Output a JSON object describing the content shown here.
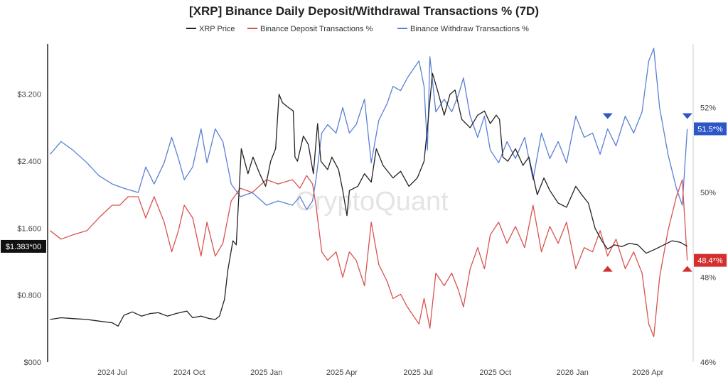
{
  "chart_data": {
    "type": "line",
    "title": "[XRP] Binance Daily Deposit/Withdrawal Transactions % (7D)",
    "watermark": "CryptoQuant",
    "x_ticks": [
      "2024 Jul",
      "2024 Oct",
      "2025 Jan",
      "2025 Apr",
      "2025 Jul",
      "2025 Oct",
      "2026 Jan",
      "2026 Apr"
    ],
    "y_left_ticks": [
      "$000",
      "$0.800",
      "$1.600",
      "$2.400",
      "$3.200"
    ],
    "y_left_values": [
      0,
      0.8,
      1.6,
      2.4,
      3.2
    ],
    "y_left_range": [
      0,
      3.8
    ],
    "y_right_ticks": [
      "46%",
      "48%",
      "50%",
      "52%"
    ],
    "y_right_values": [
      46,
      48,
      50,
      52
    ],
    "y_right_range": [
      46,
      53.5
    ],
    "x_range": [
      "2024-04-15",
      "2026-05-25"
    ],
    "series": [
      {
        "name": "XRP Price",
        "axis": "left",
        "color": "#222222",
        "last_label": "$1.383*00",
        "points": [
          [
            "2024-04-18",
            0.51
          ],
          [
            "2024-05-01",
            0.53
          ],
          [
            "2024-05-15",
            0.52
          ],
          [
            "2024-06-01",
            0.51
          ],
          [
            "2024-06-15",
            0.49
          ],
          [
            "2024-07-01",
            0.47
          ],
          [
            "2024-07-08",
            0.43
          ],
          [
            "2024-07-15",
            0.56
          ],
          [
            "2024-07-25",
            0.6
          ],
          [
            "2024-08-05",
            0.55
          ],
          [
            "2024-08-15",
            0.58
          ],
          [
            "2024-08-25",
            0.59
          ],
          [
            "2024-09-05",
            0.55
          ],
          [
            "2024-09-15",
            0.58
          ],
          [
            "2024-09-28",
            0.61
          ],
          [
            "2024-10-05",
            0.53
          ],
          [
            "2024-10-15",
            0.55
          ],
          [
            "2024-10-25",
            0.52
          ],
          [
            "2024-11-01",
            0.51
          ],
          [
            "2024-11-06",
            0.55
          ],
          [
            "2024-11-12",
            0.75
          ],
          [
            "2024-11-16",
            1.1
          ],
          [
            "2024-11-22",
            1.45
          ],
          [
            "2024-11-26",
            1.4
          ],
          [
            "2024-12-02",
            2.55
          ],
          [
            "2024-12-06",
            2.4
          ],
          [
            "2024-12-10",
            2.25
          ],
          [
            "2024-12-16",
            2.45
          ],
          [
            "2024-12-24",
            2.25
          ],
          [
            "2024-12-31",
            2.1
          ],
          [
            "2025-01-06",
            2.4
          ],
          [
            "2025-01-12",
            2.55
          ],
          [
            "2025-01-16",
            3.2
          ],
          [
            "2025-01-20",
            3.1
          ],
          [
            "2025-01-26",
            3.05
          ],
          [
            "2025-02-02",
            3.0
          ],
          [
            "2025-02-04",
            2.45
          ],
          [
            "2025-02-07",
            2.4
          ],
          [
            "2025-02-14",
            2.7
          ],
          [
            "2025-02-20",
            2.6
          ],
          [
            "2025-02-26",
            2.25
          ],
          [
            "2025-03-03",
            2.85
          ],
          [
            "2025-03-07",
            2.4
          ],
          [
            "2025-03-15",
            2.3
          ],
          [
            "2025-03-20",
            2.45
          ],
          [
            "2025-03-28",
            2.3
          ],
          [
            "2025-04-02",
            2.05
          ],
          [
            "2025-04-07",
            1.75
          ],
          [
            "2025-04-10",
            2.05
          ],
          [
            "2025-04-20",
            2.1
          ],
          [
            "2025-04-28",
            2.25
          ],
          [
            "2025-05-06",
            2.15
          ],
          [
            "2025-05-12",
            2.55
          ],
          [
            "2025-05-20",
            2.35
          ],
          [
            "2025-06-01",
            2.2
          ],
          [
            "2025-06-10",
            2.28
          ],
          [
            "2025-06-20",
            2.1
          ],
          [
            "2025-06-30",
            2.2
          ],
          [
            "2025-07-08",
            2.4
          ],
          [
            "2025-07-12",
            2.8
          ],
          [
            "2025-07-18",
            3.45
          ],
          [
            "2025-07-24",
            3.25
          ],
          [
            "2025-08-01",
            2.95
          ],
          [
            "2025-08-08",
            3.2
          ],
          [
            "2025-08-14",
            3.25
          ],
          [
            "2025-08-22",
            2.9
          ],
          [
            "2025-09-01",
            2.8
          ],
          [
            "2025-09-10",
            2.95
          ],
          [
            "2025-09-18",
            3.0
          ],
          [
            "2025-09-25",
            2.85
          ],
          [
            "2025-10-02",
            2.95
          ],
          [
            "2025-10-06",
            2.9
          ],
          [
            "2025-10-10",
            2.45
          ],
          [
            "2025-10-16",
            2.4
          ],
          [
            "2025-10-25",
            2.55
          ],
          [
            "2025-11-03",
            2.35
          ],
          [
            "2025-11-10",
            2.45
          ],
          [
            "2025-11-20",
            2.0
          ],
          [
            "2025-11-28",
            2.2
          ],
          [
            "2025-12-05",
            2.05
          ],
          [
            "2025-12-15",
            1.9
          ],
          [
            "2025-12-25",
            1.85
          ],
          [
            "2026-01-05",
            2.1
          ],
          [
            "2026-01-12",
            2.0
          ],
          [
            "2026-01-20",
            1.9
          ],
          [
            "2026-01-28",
            1.6
          ],
          [
            "2026-02-05",
            1.45
          ],
          [
            "2026-02-12",
            1.35
          ],
          [
            "2026-02-20",
            1.4
          ],
          [
            "2026-03-01",
            1.38
          ],
          [
            "2026-03-10",
            1.42
          ],
          [
            "2026-03-20",
            1.4
          ],
          [
            "2026-03-30",
            1.3
          ],
          [
            "2026-04-10",
            1.35
          ],
          [
            "2026-04-20",
            1.4
          ],
          [
            "2026-04-30",
            1.45
          ],
          [
            "2026-05-10",
            1.43
          ],
          [
            "2026-05-18",
            1.383
          ]
        ]
      },
      {
        "name": "Binance Deposit Transactions %",
        "axis": "right",
        "color": "#d9534f",
        "last_label": "48.4*%",
        "points": [
          [
            "2024-04-18",
            49.1
          ],
          [
            "2024-05-01",
            48.9
          ],
          [
            "2024-05-15",
            49.0
          ],
          [
            "2024-06-01",
            49.1
          ],
          [
            "2024-06-15",
            49.4
          ],
          [
            "2024-07-01",
            49.7
          ],
          [
            "2024-07-10",
            49.7
          ],
          [
            "2024-07-20",
            49.9
          ],
          [
            "2024-08-01",
            49.9
          ],
          [
            "2024-08-10",
            49.4
          ],
          [
            "2024-08-20",
            49.9
          ],
          [
            "2024-09-01",
            49.3
          ],
          [
            "2024-09-10",
            48.6
          ],
          [
            "2024-09-18",
            49.1
          ],
          [
            "2024-09-25",
            49.7
          ],
          [
            "2024-10-05",
            49.4
          ],
          [
            "2024-10-15",
            48.5
          ],
          [
            "2024-10-22",
            49.3
          ],
          [
            "2024-11-01",
            48.5
          ],
          [
            "2024-11-10",
            48.8
          ],
          [
            "2024-11-20",
            49.8
          ],
          [
            "2024-12-01",
            50.1
          ],
          [
            "2024-12-15",
            50.0
          ],
          [
            "2025-01-01",
            50.3
          ],
          [
            "2025-01-15",
            50.2
          ],
          [
            "2025-02-01",
            50.3
          ],
          [
            "2025-02-10",
            50.1
          ],
          [
            "2025-02-18",
            50.4
          ],
          [
            "2025-02-25",
            50.2
          ],
          [
            "2025-03-01",
            49.7
          ],
          [
            "2025-03-08",
            48.6
          ],
          [
            "2025-03-15",
            48.4
          ],
          [
            "2025-03-25",
            48.6
          ],
          [
            "2025-04-02",
            48.0
          ],
          [
            "2025-04-10",
            48.6
          ],
          [
            "2025-04-18",
            48.4
          ],
          [
            "2025-04-28",
            47.8
          ],
          [
            "2025-05-06",
            49.3
          ],
          [
            "2025-05-15",
            48.3
          ],
          [
            "2025-05-25",
            47.9
          ],
          [
            "2025-06-01",
            47.5
          ],
          [
            "2025-06-10",
            47.6
          ],
          [
            "2025-06-18",
            47.3
          ],
          [
            "2025-06-25",
            47.1
          ],
          [
            "2025-07-02",
            46.9
          ],
          [
            "2025-07-08",
            47.5
          ],
          [
            "2025-07-15",
            46.8
          ],
          [
            "2025-07-22",
            48.1
          ],
          [
            "2025-08-01",
            47.8
          ],
          [
            "2025-08-10",
            48.1
          ],
          [
            "2025-08-18",
            47.7
          ],
          [
            "2025-08-24",
            47.3
          ],
          [
            "2025-09-01",
            48.2
          ],
          [
            "2025-09-10",
            48.7
          ],
          [
            "2025-09-18",
            48.2
          ],
          [
            "2025-09-25",
            49.0
          ],
          [
            "2025-10-05",
            49.3
          ],
          [
            "2025-10-15",
            48.8
          ],
          [
            "2025-10-25",
            49.2
          ],
          [
            "2025-11-05",
            48.7
          ],
          [
            "2025-11-15",
            49.7
          ],
          [
            "2025-11-25",
            48.6
          ],
          [
            "2025-12-05",
            49.2
          ],
          [
            "2025-12-15",
            48.8
          ],
          [
            "2025-12-25",
            49.3
          ],
          [
            "2026-01-05",
            48.2
          ],
          [
            "2026-01-15",
            48.7
          ],
          [
            "2026-01-25",
            48.6
          ],
          [
            "2026-02-03",
            49.1
          ],
          [
            "2026-02-12",
            48.5
          ],
          [
            "2026-02-22",
            48.9
          ],
          [
            "2026-03-05",
            48.2
          ],
          [
            "2026-03-15",
            48.6
          ],
          [
            "2026-03-25",
            48.1
          ],
          [
            "2026-04-02",
            46.9
          ],
          [
            "2026-04-08",
            46.6
          ],
          [
            "2026-04-15",
            48.0
          ],
          [
            "2026-04-25",
            49.1
          ],
          [
            "2026-05-05",
            49.9
          ],
          [
            "2026-05-12",
            50.3
          ],
          [
            "2026-05-18",
            48.4
          ]
        ]
      },
      {
        "name": "Binance Withdraw Transactions %",
        "axis": "right",
        "color": "#5b7fd6",
        "last_label": "51.5*%",
        "points": [
          [
            "2024-04-18",
            50.9
          ],
          [
            "2024-05-01",
            51.2
          ],
          [
            "2024-05-15",
            51.0
          ],
          [
            "2024-06-01",
            50.7
          ],
          [
            "2024-06-15",
            50.4
          ],
          [
            "2024-07-01",
            50.2
          ],
          [
            "2024-07-15",
            50.1
          ],
          [
            "2024-08-01",
            50.0
          ],
          [
            "2024-08-10",
            50.6
          ],
          [
            "2024-08-20",
            50.2
          ],
          [
            "2024-09-01",
            50.7
          ],
          [
            "2024-09-10",
            51.3
          ],
          [
            "2024-09-18",
            50.8
          ],
          [
            "2024-09-25",
            50.3
          ],
          [
            "2024-10-05",
            50.6
          ],
          [
            "2024-10-15",
            51.5
          ],
          [
            "2024-10-22",
            50.7
          ],
          [
            "2024-11-01",
            51.5
          ],
          [
            "2024-11-10",
            51.2
          ],
          [
            "2024-11-20",
            50.2
          ],
          [
            "2024-12-01",
            49.9
          ],
          [
            "2024-12-15",
            50.0
          ],
          [
            "2025-01-01",
            49.7
          ],
          [
            "2025-01-15",
            49.8
          ],
          [
            "2025-02-01",
            49.7
          ],
          [
            "2025-02-10",
            49.9
          ],
          [
            "2025-02-18",
            49.6
          ],
          [
            "2025-02-25",
            49.8
          ],
          [
            "2025-03-01",
            50.3
          ],
          [
            "2025-03-08",
            51.4
          ],
          [
            "2025-03-15",
            51.6
          ],
          [
            "2025-03-25",
            51.4
          ],
          [
            "2025-04-02",
            52.0
          ],
          [
            "2025-04-10",
            51.4
          ],
          [
            "2025-04-18",
            51.6
          ],
          [
            "2025-04-28",
            52.2
          ],
          [
            "2025-05-06",
            50.7
          ],
          [
            "2025-05-15",
            51.7
          ],
          [
            "2025-05-25",
            52.1
          ],
          [
            "2025-06-01",
            52.5
          ],
          [
            "2025-06-10",
            52.4
          ],
          [
            "2025-06-18",
            52.7
          ],
          [
            "2025-06-25",
            52.9
          ],
          [
            "2025-07-02",
            53.1
          ],
          [
            "2025-07-08",
            52.5
          ],
          [
            "2025-07-12",
            51.0
          ],
          [
            "2025-07-15",
            53.2
          ],
          [
            "2025-07-22",
            51.9
          ],
          [
            "2025-08-01",
            52.2
          ],
          [
            "2025-08-10",
            51.9
          ],
          [
            "2025-08-18",
            52.3
          ],
          [
            "2025-08-24",
            52.7
          ],
          [
            "2025-09-01",
            51.8
          ],
          [
            "2025-09-10",
            51.3
          ],
          [
            "2025-09-18",
            51.8
          ],
          [
            "2025-09-25",
            51.0
          ],
          [
            "2025-10-05",
            50.7
          ],
          [
            "2025-10-15",
            51.2
          ],
          [
            "2025-10-25",
            50.8
          ],
          [
            "2025-11-05",
            51.3
          ],
          [
            "2025-11-15",
            50.3
          ],
          [
            "2025-11-25",
            51.4
          ],
          [
            "2025-12-05",
            50.8
          ],
          [
            "2025-12-15",
            51.2
          ],
          [
            "2025-12-25",
            50.7
          ],
          [
            "2026-01-05",
            51.8
          ],
          [
            "2026-01-15",
            51.3
          ],
          [
            "2026-01-25",
            51.4
          ],
          [
            "2026-02-03",
            50.9
          ],
          [
            "2026-02-12",
            51.5
          ],
          [
            "2026-02-22",
            51.1
          ],
          [
            "2026-03-05",
            51.8
          ],
          [
            "2026-03-15",
            51.4
          ],
          [
            "2026-03-25",
            51.9
          ],
          [
            "2026-04-02",
            53.1
          ],
          [
            "2026-04-08",
            53.4
          ],
          [
            "2026-04-15",
            52.0
          ],
          [
            "2026-04-25",
            50.9
          ],
          [
            "2026-05-05",
            50.1
          ],
          [
            "2026-05-12",
            49.7
          ],
          [
            "2026-05-18",
            51.5
          ]
        ]
      }
    ],
    "markers": [
      {
        "type": "down",
        "date": "2026-02-12",
        "value": 51.8,
        "color": "#2d56c7"
      },
      {
        "type": "down",
        "date": "2026-05-18",
        "value": 51.8,
        "color": "#2d56c7"
      },
      {
        "type": "up",
        "date": "2026-02-12",
        "value": 48.2,
        "color": "#d32f2f"
      },
      {
        "type": "up",
        "date": "2026-05-18",
        "value": 48.2,
        "color": "#d32f2f"
      }
    ]
  }
}
